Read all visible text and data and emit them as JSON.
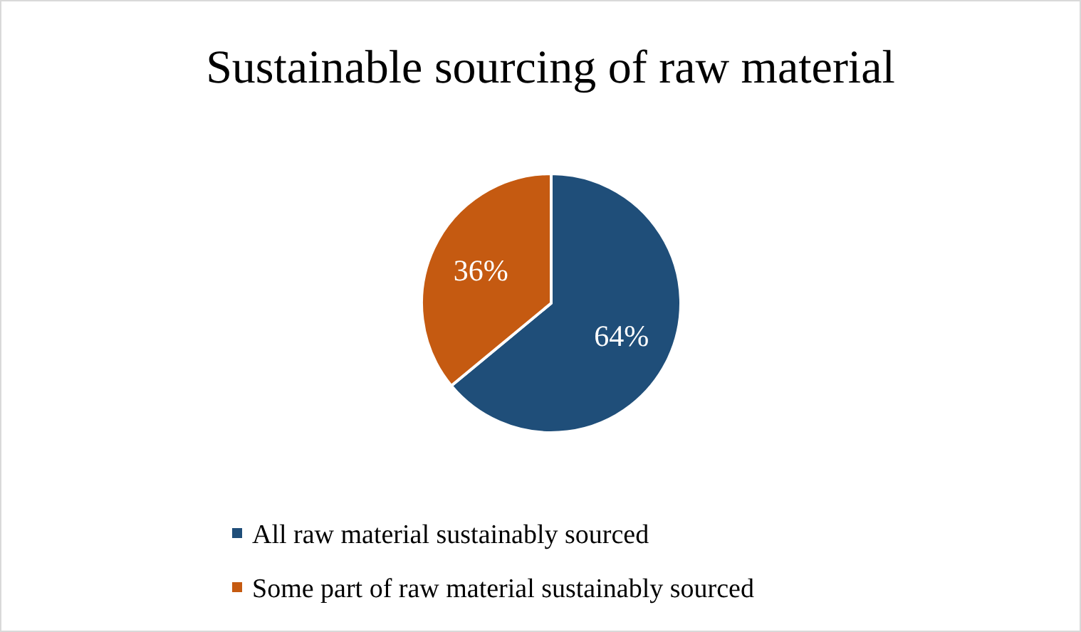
{
  "chart_data": {
    "type": "pie",
    "title": "Sustainable sourcing of raw material",
    "categories": [
      "All raw material sustainably sourced",
      "Some part of raw material sustainably sourced"
    ],
    "values": [
      64,
      36
    ],
    "colors": [
      "#1f4e79",
      "#c55a11"
    ],
    "value_labels": [
      "64%",
      "36%"
    ],
    "legend": "bottom"
  }
}
